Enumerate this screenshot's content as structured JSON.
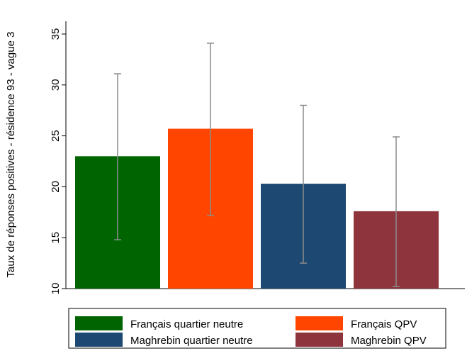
{
  "chart_data": {
    "type": "bar",
    "title": "",
    "xlabel": "",
    "ylabel": "Taux de réponses positives - résidence 93 - vague 3",
    "ylim": [
      10,
      35
    ],
    "yticks": [
      10,
      15,
      20,
      25,
      30,
      35
    ],
    "grid": false,
    "legend": "bottom",
    "categories": [
      "Français quartier neutre",
      "Français QPV",
      "Maghrebin quartier neutre",
      "Maghrebin QPV"
    ],
    "values": [
      23.0,
      25.7,
      20.3,
      17.6
    ],
    "ci_low": [
      14.8,
      17.2,
      12.5,
      10.2
    ],
    "ci_high": [
      31.1,
      34.1,
      28.0,
      24.9
    ],
    "colors": [
      "#006400",
      "#ff4500",
      "#1c4872",
      "#8d343c"
    ],
    "errorbar_color": "#8c8c8c"
  }
}
